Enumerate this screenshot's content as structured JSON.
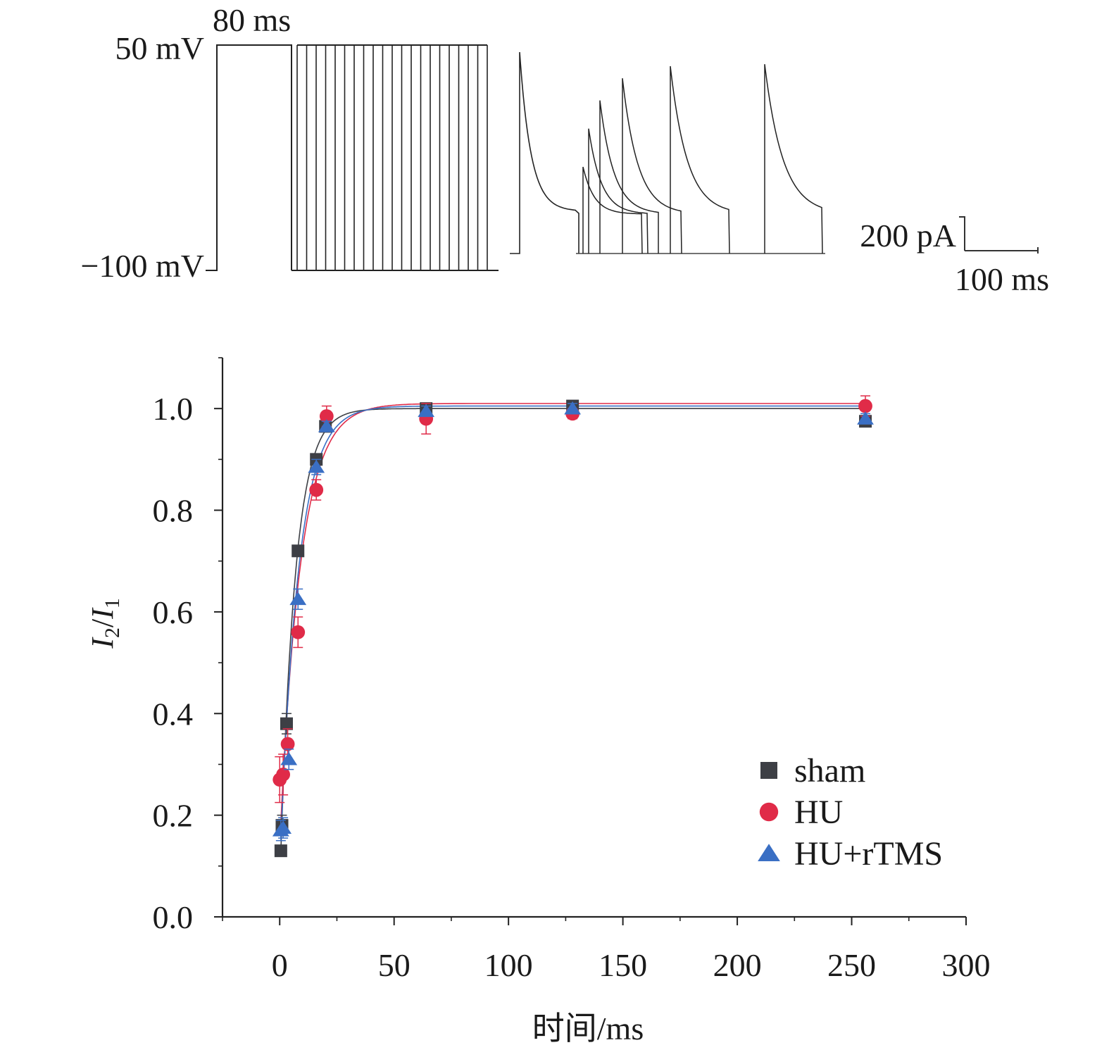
{
  "protocol": {
    "duration_label": "80 ms",
    "high_voltage_label": "50 mV",
    "low_voltage_label": "−100 mV",
    "interval_count": 21
  },
  "traces": {
    "current_scale_label": "200 pA",
    "time_scale_label": "100 ms",
    "second_pulse_peaks": [
      0.43,
      0.62,
      0.76,
      0.87,
      0.93,
      0.94
    ]
  },
  "chart_data": {
    "type": "scatter",
    "xlabel": "时间/ms",
    "ylabel_main": "I",
    "ylabel_sub2": "2",
    "ylabel_sub1": "1",
    "xlim": [
      -25,
      300
    ],
    "ylim": [
      0,
      1.1
    ],
    "x_ticks": [
      0,
      50,
      100,
      150,
      200,
      250,
      300
    ],
    "x_tick_labels": [
      "0",
      "50",
      "100",
      "150",
      "200",
      "250",
      "300"
    ],
    "y_ticks": [
      0.0,
      0.2,
      0.4,
      0.6,
      0.8,
      1.0
    ],
    "y_tick_labels": [
      "0.0",
      "0.2",
      "0.4",
      "0.6",
      "0.8",
      "1.0"
    ],
    "legend_position": "bottom-right",
    "series": [
      {
        "name": "sham",
        "marker": "square",
        "color": "#3d3f45",
        "fit": {
          "A": 1.0,
          "tau": 6.5,
          "y0": 0.06
        },
        "points": [
          {
            "x": 0.5,
            "y": 0.13,
            "err": 0.01
          },
          {
            "x": 1.0,
            "y": 0.18,
            "err": 0.02
          },
          {
            "x": 3.0,
            "y": 0.38,
            "err": 0.02
          },
          {
            "x": 8.0,
            "y": 0.72,
            "err": 0.01
          },
          {
            "x": 16.0,
            "y": 0.9,
            "err": 0.01
          },
          {
            "x": 20.0,
            "y": 0.965,
            "err": 0.01
          },
          {
            "x": 64.0,
            "y": 1.0,
            "err": 0.01
          },
          {
            "x": 128.0,
            "y": 1.005,
            "err": 0.01
          },
          {
            "x": 256.0,
            "y": 0.975,
            "err": 0.01
          }
        ]
      },
      {
        "name": "HU",
        "marker": "circle",
        "color": "#e02b48",
        "fit": {
          "A": 1.01,
          "tau": 9.0,
          "y0": 0.14
        },
        "points": [
          {
            "x": 0.0,
            "y": 0.27,
            "err": 0.045
          },
          {
            "x": 1.5,
            "y": 0.28,
            "err": 0.04
          },
          {
            "x": 3.5,
            "y": 0.34,
            "err": 0.03
          },
          {
            "x": 8.0,
            "y": 0.56,
            "err": 0.03
          },
          {
            "x": 16.0,
            "y": 0.84,
            "err": 0.02
          },
          {
            "x": 20.5,
            "y": 0.985,
            "err": 0.02
          },
          {
            "x": 64.0,
            "y": 0.98,
            "err": 0.03
          },
          {
            "x": 128.0,
            "y": 0.99,
            "err": 0.01
          },
          {
            "x": 256.0,
            "y": 1.005,
            "err": 0.02
          }
        ]
      },
      {
        "name": "HU+rTMS",
        "marker": "triangle",
        "color": "#3a6fc4",
        "fit": {
          "A": 1.005,
          "tau": 8.0,
          "y0": 0.1
        },
        "points": [
          {
            "x": 0.5,
            "y": 0.17,
            "err": 0.02
          },
          {
            "x": 1.5,
            "y": 0.175,
            "err": 0.02
          },
          {
            "x": 4.0,
            "y": 0.31,
            "err": 0.02
          },
          {
            "x": 8.0,
            "y": 0.625,
            "err": 0.02
          },
          {
            "x": 16.0,
            "y": 0.885,
            "err": 0.015
          },
          {
            "x": 20.5,
            "y": 0.965,
            "err": 0.01
          },
          {
            "x": 64.0,
            "y": 0.995,
            "err": 0.01
          },
          {
            "x": 128.0,
            "y": 1.0,
            "err": 0.01
          },
          {
            "x": 256.0,
            "y": 0.98,
            "err": 0.01
          }
        ]
      }
    ]
  }
}
